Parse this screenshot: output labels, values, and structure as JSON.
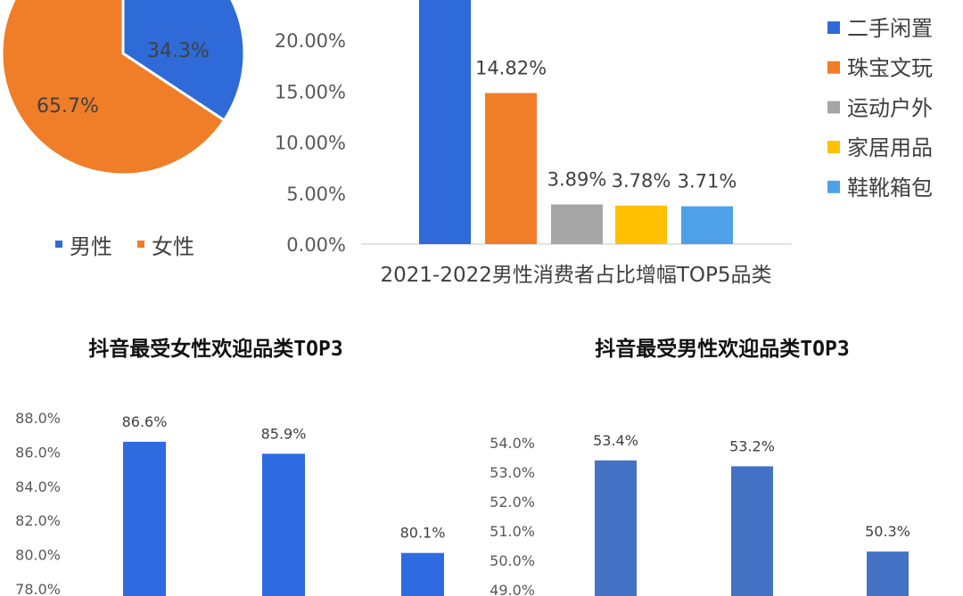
{
  "chart_data": [
    {
      "type": "pie",
      "slices": [
        {
          "label": "男性",
          "value": 34.3,
          "value_text": "34.3%",
          "color": "#2E6BD8"
        },
        {
          "label": "女性",
          "value": 65.7,
          "value_text": "65.7%",
          "color": "#F07D28"
        }
      ],
      "legend": [
        "男性",
        "女性"
      ],
      "legend_position": "bottom"
    },
    {
      "type": "bar",
      "title": "2021-2022男性消费者占比增幅TOP5品类",
      "categories": [
        "二手闲置",
        "珠宝文玩",
        "运动户外",
        "家居用品",
        "鞋靴箱包"
      ],
      "values": [
        24.5,
        14.82,
        3.89,
        3.78,
        3.71
      ],
      "data_labels": [
        "",
        "14.82%",
        "3.89%",
        "3.78%",
        "3.71%"
      ],
      "colors": [
        "#2E6BD8",
        "#F07D28",
        "#A5A5A5",
        "#FFC000",
        "#4EA1E8"
      ],
      "yticks": [
        "0.00%",
        "5.00%",
        "10.00%",
        "15.00%",
        "20.00%"
      ],
      "ylim": [
        0,
        25
      ],
      "legend_position": "right"
    },
    {
      "type": "bar",
      "title": "抖音最受女性欢迎品类TOP3",
      "values": [
        86.6,
        85.9,
        80.1
      ],
      "data_labels": [
        "86.6%",
        "85.9%",
        "80.1%"
      ],
      "color": "#2E6BE0",
      "yticks": [
        "78.0%",
        "80.0%",
        "82.0%",
        "84.0%",
        "86.0%",
        "88.0%"
      ],
      "ylim": [
        78,
        88
      ]
    },
    {
      "type": "bar",
      "title": "抖音最受男性欢迎品类TOP3",
      "values": [
        53.4,
        53.2,
        50.3
      ],
      "data_labels": [
        "53.4%",
        "53.2%",
        "50.3%"
      ],
      "color": "#4472C4",
      "yticks": [
        "49.0%",
        "50.0%",
        "51.0%",
        "52.0%",
        "53.0%",
        "54.0%"
      ],
      "ylim": [
        49,
        54
      ]
    }
  ]
}
